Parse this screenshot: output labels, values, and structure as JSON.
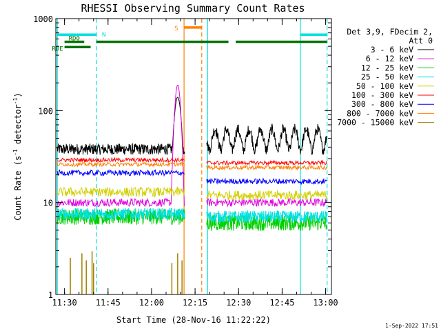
{
  "chart_data": {
    "type": "line",
    "title": "RHESSI Observing Summary Count Rates",
    "xlabel": "Start Time (28-Nov-16 11:22:22)",
    "ylabel": "Count Rate (s",
    "ylabel_sup1": "-1",
    "ylabel_mid": " detector",
    "ylabel_sup2": "-1",
    "ylabel_end": ")",
    "x_unit": "minutes after 11:22",
    "xlim": [
      5,
      100
    ],
    "ylim": [
      1,
      1000
    ],
    "yscale": "log",
    "x_tick_values": [
      8,
      23,
      38,
      53,
      68,
      83,
      98
    ],
    "x_tick_labels": [
      "11:30",
      "11:45",
      "12:00",
      "12:15",
      "12:30",
      "12:45",
      "13:00"
    ],
    "y_tick_values": [
      1,
      10,
      100,
      1000
    ],
    "y_tick_labels": [
      "1",
      "10",
      "100",
      "1000"
    ],
    "legend_header": [
      "Det 3,9, FDecim 2,",
      "Att 0"
    ],
    "legend_position": "right",
    "series": [
      {
        "name": "3 - 6 keV",
        "color": "#000000",
        "base_pre": 38,
        "base_post": 50,
        "noise": 0.14
      },
      {
        "name": "6 - 12 keV",
        "color": "#e000e0",
        "base_pre": 10,
        "base_post": 10,
        "noise": 0.1
      },
      {
        "name": "12 - 25 keV",
        "color": "#00d000",
        "base_pre": 7,
        "base_post": 6,
        "noise": 0.2
      },
      {
        "name": "25 - 50 keV",
        "color": "#00e0e0",
        "base_pre": 7.5,
        "base_post": 7,
        "noise": 0.15
      },
      {
        "name": "50 - 100 keV",
        "color": "#d0d000",
        "base_pre": 13,
        "base_post": 12,
        "noise": 0.12
      },
      {
        "name": "100 - 300 keV",
        "color": "#ff0000",
        "base_pre": 29,
        "base_post": 27,
        "noise": 0.05
      },
      {
        "name": "300 - 800 keV",
        "color": "#0000ff",
        "base_pre": 21,
        "base_post": 17,
        "noise": 0.07
      },
      {
        "name": "800 - 7000 keV",
        "color": "#ff8000",
        "base_pre": 26,
        "base_post": 24,
        "noise": 0.05
      },
      {
        "name": "7000 - 15000 keV",
        "color": "#a08000",
        "base_pre": 1,
        "base_post": 1,
        "noise": 0
      }
    ],
    "flare_peak": {
      "series": "6 - 12 keV",
      "x": 47,
      "y": 190
    },
    "data_gap": [
      49.5,
      57
    ],
    "vlines": [
      {
        "x": 5.5,
        "color": "#00e0e0",
        "style": "solid"
      },
      {
        "x": 19,
        "color": "#00e0e0",
        "style": "dashed"
      },
      {
        "x": 49.2,
        "color": "#ff8000",
        "style": "solid"
      },
      {
        "x": 55.3,
        "color": "#ff8000",
        "style": "dashed"
      },
      {
        "x": 57.3,
        "color": "#00e0e0",
        "style": "solid"
      },
      {
        "x": 89.3,
        "color": "#00e0e0",
        "style": "solid"
      },
      {
        "x": 98.5,
        "color": "#00e0e0",
        "style": "dashed"
      }
    ],
    "flags": [
      {
        "label": "N",
        "color": "#00e0e0",
        "y": 670,
        "segments": [
          [
            5.5,
            19
          ],
          [
            89.3,
            98.5
          ]
        ]
      },
      {
        "label": "S",
        "color": "#ff8000",
        "y": 800,
        "segments": [
          [
            49.2,
            55.3
          ]
        ]
      },
      {
        "label": "RD0",
        "color": "#007000",
        "y": 560,
        "segments": [
          [
            8,
            14.8
          ],
          [
            19,
            64.5
          ],
          [
            67,
            98.5
          ]
        ]
      },
      {
        "label": "RDE",
        "color": "#007000",
        "y": 490,
        "segments": [
          [
            8,
            17
          ]
        ]
      }
    ],
    "grid": false
  },
  "timestamp": "1-Sep-2022 17:51"
}
